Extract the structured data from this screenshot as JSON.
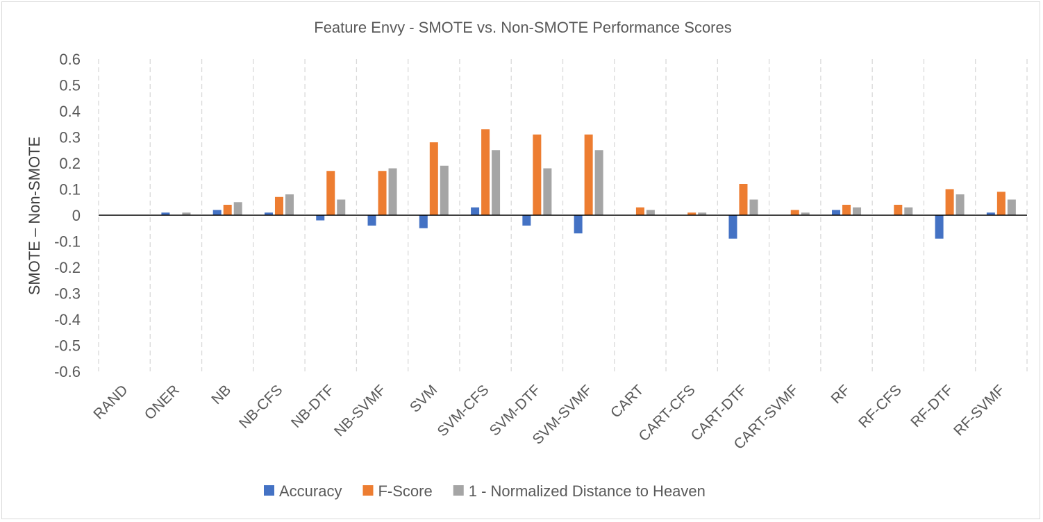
{
  "chart_data": {
    "type": "bar",
    "title": "Feature Envy - SMOTE vs. Non-SMOTE Performance Scores",
    "ylabel": "SMOTE – Non-SMOTE",
    "xlabel": "",
    "ylim": [
      -0.6,
      0.6
    ],
    "yticks": [
      "0.6",
      "0.5",
      "0.4",
      "0.3",
      "0.2",
      "0.1",
      "0",
      "-0.1",
      "-0.2",
      "-0.3",
      "-0.4",
      "-0.5",
      "-0.6"
    ],
    "grid": "vertical dashed",
    "legend": "bottom",
    "categories": [
      "RAND",
      "ONER",
      "NB",
      "NB-CFS",
      "NB-DTF",
      "NB-SVMF",
      "SVM",
      "SVM-CFS",
      "SVM-DTF",
      "SVM-SVMF",
      "CART",
      "CART-CFS",
      "CART-DTF",
      "CART-SVMF",
      "RF",
      "RF-CFS",
      "RF-DTF",
      "RF-SVMF"
    ],
    "series": [
      {
        "name": "Accuracy",
        "color": "#4472c4",
        "values": [
          0,
          0.01,
          0.02,
          0.01,
          -0.02,
          -0.04,
          -0.05,
          0.03,
          -0.04,
          -0.07,
          0,
          0,
          -0.09,
          0,
          0.02,
          0,
          -0.09,
          0.01
        ]
      },
      {
        "name": "F-Score",
        "color": "#ed7d31",
        "values": [
          0,
          0,
          0.04,
          0.07,
          0.17,
          0.17,
          0.28,
          0.33,
          0.31,
          0.31,
          0.03,
          0.01,
          0.12,
          0.02,
          0.04,
          0.04,
          0.1,
          0.09
        ]
      },
      {
        "name": "1 - Normalized Distance to Heaven",
        "color": "#a5a5a5",
        "values": [
          0,
          0.01,
          0.05,
          0.08,
          0.06,
          0.18,
          0.19,
          0.25,
          0.18,
          0.25,
          0.02,
          0.01,
          0.06,
          0.01,
          0.03,
          0.03,
          0.08,
          0.06
        ]
      }
    ]
  }
}
